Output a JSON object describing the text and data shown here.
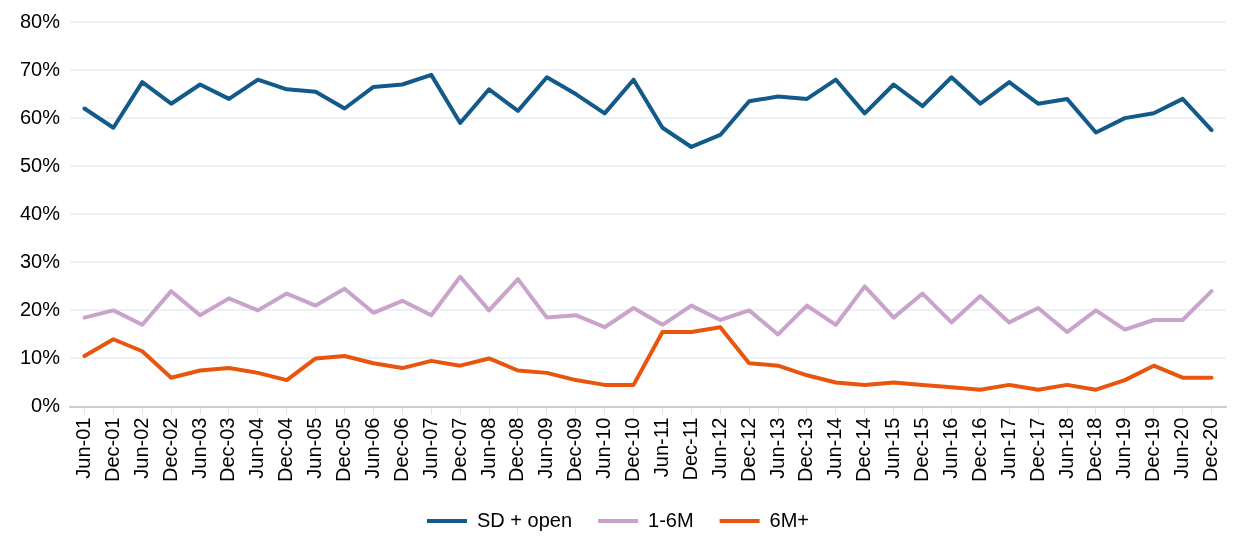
{
  "chart_data": {
    "type": "line",
    "categories": [
      "Jun-01",
      "Dec-01",
      "Jun-02",
      "Dec-02",
      "Jun-03",
      "Dec-03",
      "Jun-04",
      "Dec-04",
      "Jun-05",
      "Dec-05",
      "Jun-06",
      "Dec-06",
      "Jun-07",
      "Dec-07",
      "Jun-08",
      "Dec-08",
      "Jun-09",
      "Dec-09",
      "Jun-10",
      "Dec-10",
      "Jun-11",
      "Dec-11",
      "Jun-12",
      "Dec-12",
      "Jun-13",
      "Dec-13",
      "Jun-14",
      "Dec-14",
      "Jun-15",
      "Dec-15",
      "Jun-16",
      "Dec-16",
      "Jun-17",
      "Dec-17",
      "Jun-18",
      "Dec-18",
      "Jun-19",
      "Dec-19",
      "Jun-20",
      "Dec-20"
    ],
    "series": [
      {
        "name": "SD + open",
        "color": "#115a8a",
        "values": [
          62,
          58,
          67.5,
          63,
          67,
          64,
          68,
          66,
          65.5,
          62,
          66.5,
          67,
          69,
          59,
          66,
          61.5,
          68.5,
          65,
          61,
          68,
          58,
          54,
          56.5,
          63.5,
          64.5,
          64,
          68,
          61,
          67,
          62.5,
          68.5,
          63,
          67.5,
          63,
          64,
          57,
          60,
          61,
          64,
          57.5
        ]
      },
      {
        "name": "1-6M",
        "color": "#c9a3cb",
        "values": [
          18.5,
          20,
          17,
          24,
          19,
          22.5,
          20,
          23.5,
          21,
          24.5,
          19.5,
          22,
          19,
          27,
          20,
          26.5,
          18.5,
          19,
          16.5,
          20.5,
          17,
          21,
          18,
          20,
          15,
          21,
          17,
          25,
          18.5,
          23.5,
          17.5,
          23,
          17.5,
          20.5,
          15.5,
          20,
          16,
          18,
          18,
          24
        ]
      },
      {
        "name": "6M+",
        "color": "#e8560d",
        "values": [
          10.5,
          14,
          11.5,
          6,
          7.5,
          8,
          7,
          5.5,
          10,
          10.5,
          9,
          8,
          9.5,
          8.5,
          10,
          7.5,
          7,
          5.5,
          4.5,
          4.5,
          15.5,
          15.5,
          16.5,
          9,
          8.5,
          6.5,
          5,
          4.5,
          5,
          4.5,
          4,
          3.5,
          4.5,
          3.5,
          4.5,
          3.5,
          5.5,
          8.5,
          6,
          6
        ]
      }
    ],
    "ylim": [
      0,
      80
    ],
    "yticks": [
      {
        "value": 0,
        "label": "0%"
      },
      {
        "value": 10,
        "label": "10%"
      },
      {
        "value": 20,
        "label": "20%"
      },
      {
        "value": 30,
        "label": "30%"
      },
      {
        "value": 40,
        "label": "40%"
      },
      {
        "value": 50,
        "label": "50%"
      },
      {
        "value": 60,
        "label": "60%"
      },
      {
        "value": 70,
        "label": "70%"
      },
      {
        "value": 80,
        "label": "80%"
      }
    ],
    "grid": "y",
    "legend": "bottom",
    "marker": "none",
    "line_style": "solid"
  }
}
